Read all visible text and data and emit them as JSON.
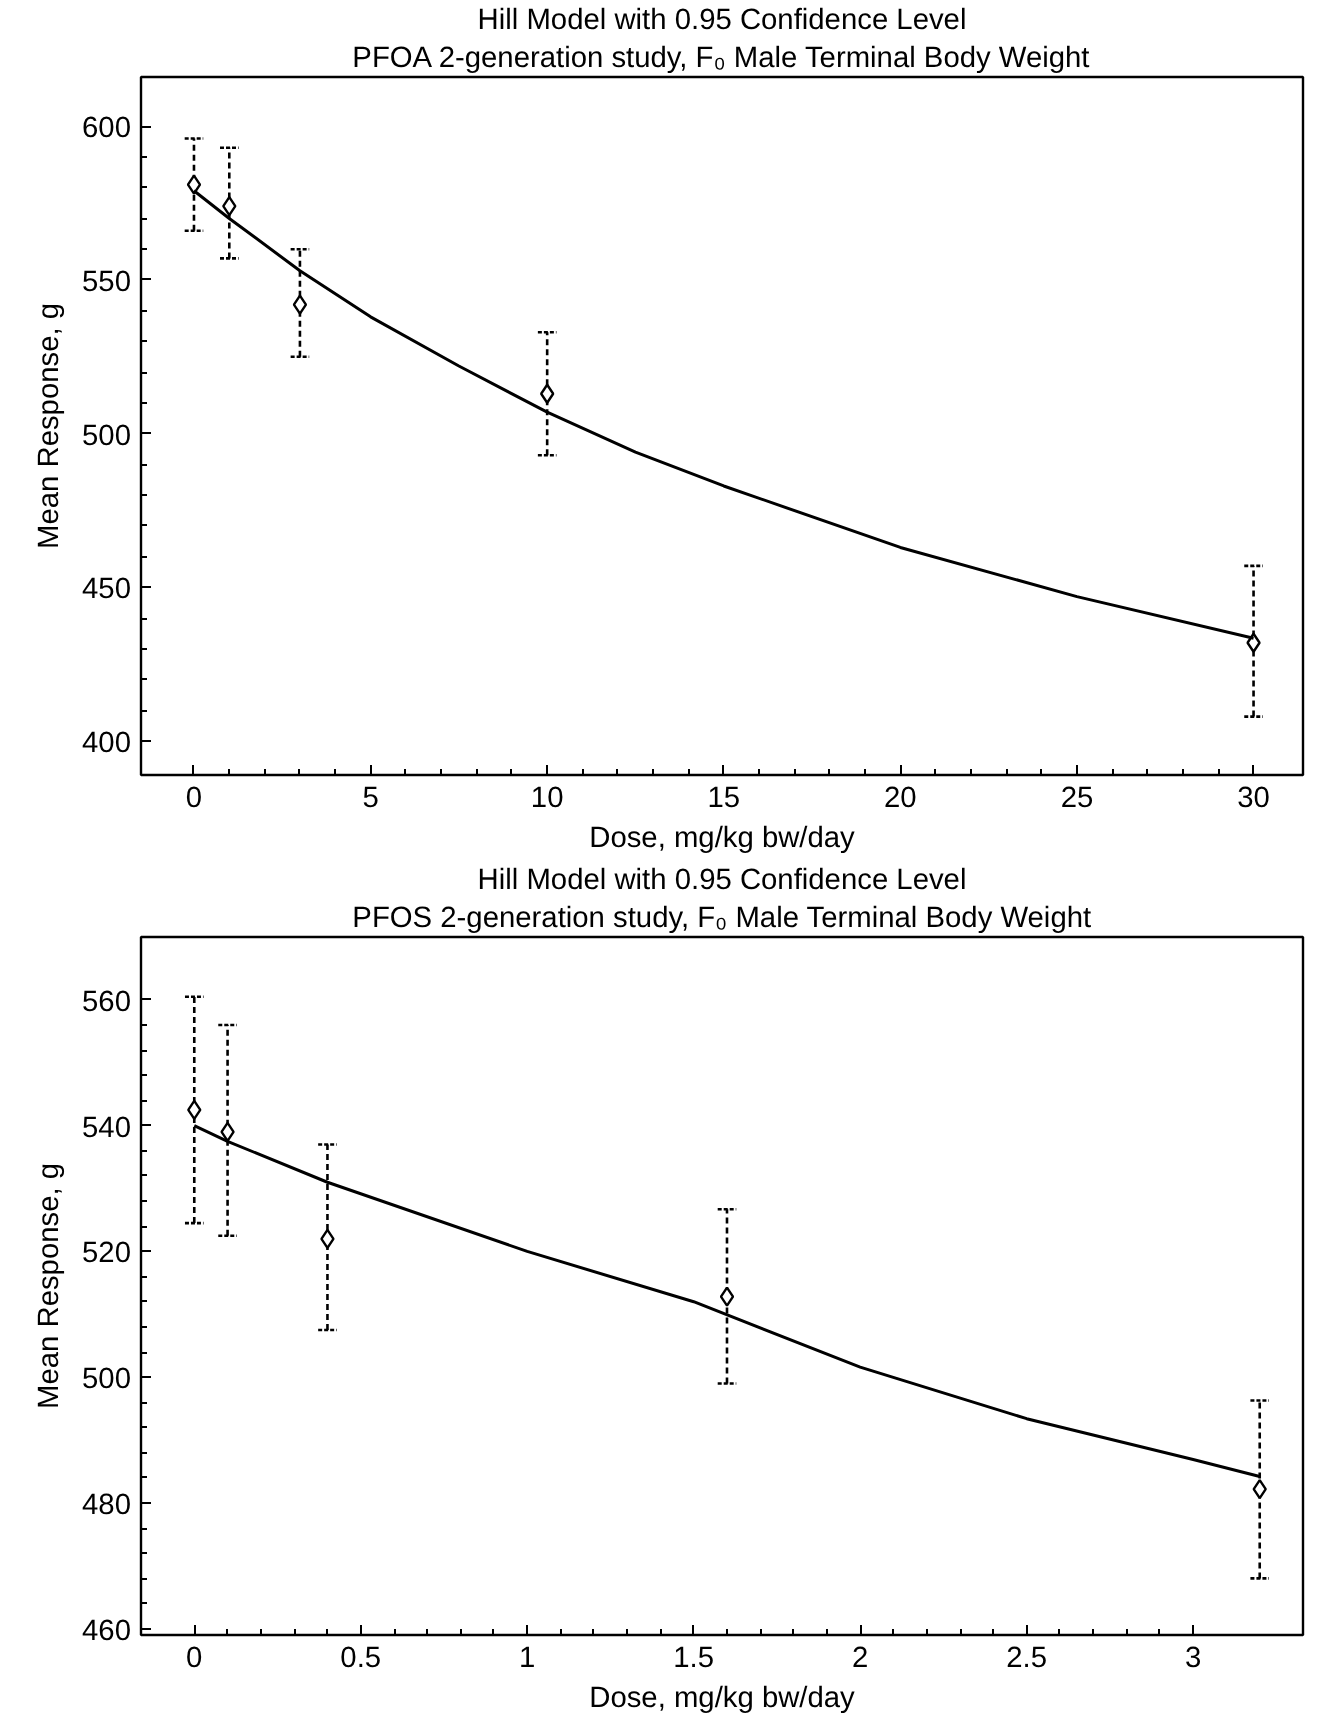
{
  "chart_data": [
    {
      "type": "scatter",
      "title": "Hill Model with 0.95 Confidence Level",
      "subtitle": "PFOA 2-generation study, F₀ Male Terminal Body Weight",
      "xlabel": "Dose, mg/kg bw/day",
      "ylabel": "Mean Response, g",
      "xlim": [
        -1.5,
        31.4
      ],
      "ylim": [
        389,
        616
      ],
      "xticks": [
        0,
        5,
        10,
        15,
        20,
        25,
        30
      ],
      "yticks": [
        400,
        450,
        500,
        550,
        600
      ],
      "grid": false,
      "marker": "diamond",
      "series": [
        {
          "color": "#000000",
          "x": [
            0,
            1,
            3,
            10,
            30
          ],
          "values": [
            581,
            574,
            542,
            513,
            432
          ],
          "errors": [
            [
              566,
              596
            ],
            [
              557,
              593
            ],
            [
              525,
              560
            ],
            [
              493,
              533
            ],
            [
              408,
              457
            ]
          ]
        },
        {
          "type": "line",
          "color": "#000000",
          "line_style": "solid",
          "marker": "none",
          "x": [
            0,
            1,
            3,
            5,
            7.5,
            10,
            12.5,
            15,
            20,
            25,
            30
          ],
          "values": [
            579,
            570,
            553,
            538,
            522,
            507,
            494,
            483,
            463,
            447,
            433.5
          ]
        }
      ]
    },
    {
      "type": "scatter",
      "title": "Hill Model with 0.95 Confidence Level",
      "subtitle": "PFOS 2-generation study, F₀ Male Terminal Body Weight",
      "xlabel": "Dose, mg/kg bw/day",
      "ylabel": "Mean Response, g",
      "xlim": [
        -0.16,
        3.33
      ],
      "ylim": [
        459,
        570
      ],
      "xticks": [
        0,
        0.5,
        1,
        1.5,
        2,
        2.5,
        3
      ],
      "yticks": [
        460,
        480,
        500,
        520,
        540,
        560
      ],
      "grid": false,
      "marker": "diamond",
      "series": [
        {
          "color": "#000000",
          "x": [
            0,
            0.1,
            0.4,
            1.6,
            3.2
          ],
          "values": [
            542.5,
            539,
            522,
            512.8,
            482.2
          ],
          "errors": [
            [
              524.5,
              560.5
            ],
            [
              522.5,
              556
            ],
            [
              507.5,
              537
            ],
            [
              499,
              526.7
            ],
            [
              468,
              496.3
            ]
          ]
        },
        {
          "type": "line",
          "color": "#000000",
          "line_style": "solid",
          "marker": "none",
          "x": [
            0,
            0.1,
            0.4,
            1,
            1.5,
            2,
            2.5,
            3,
            3.2
          ],
          "values": [
            540,
            537.5,
            531,
            520,
            512,
            501.6,
            493.4,
            486.9,
            484.2
          ]
        }
      ]
    }
  ]
}
